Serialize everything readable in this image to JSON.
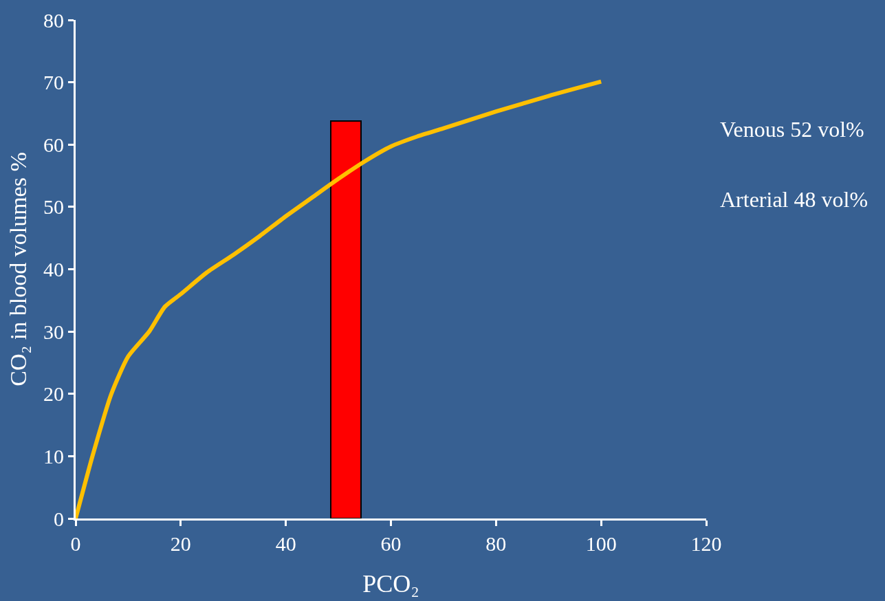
{
  "chart_data": {
    "type": "line",
    "xlabel": "PCO₂",
    "ylabel": "CO₂ in blood volumes %",
    "xlim": [
      0,
      120
    ],
    "xticks": [
      0,
      20,
      40,
      60,
      80,
      100,
      120
    ],
    "ylim": [
      0,
      80
    ],
    "yticks": [
      0,
      10,
      20,
      30,
      40,
      50,
      60,
      70,
      80
    ],
    "grid": false,
    "marker": "none",
    "line_style": "solid",
    "series": [
      {
        "color": "#ffc000",
        "x": [
          0,
          3.2,
          6.8,
          10,
          14,
          17,
          20,
          25,
          30,
          35,
          40,
          45,
          50,
          55,
          60,
          65,
          70,
          80,
          90,
          100
        ],
        "values": [
          0,
          10,
          20,
          26,
          30,
          34,
          36,
          39.5,
          42.3,
          45.3,
          48.5,
          51.5,
          54.5,
          57.3,
          59.7,
          61.3,
          62.6,
          65.3,
          67.8,
          70.1
        ]
      },
      {
        "type": "bar",
        "color": "#ff0000",
        "x": [
          51.4
        ],
        "values": [
          63.8
        ]
      }
    ],
    "annotations": [
      "Venous 52 vol%",
      "Arterial 48 vol%"
    ]
  }
}
